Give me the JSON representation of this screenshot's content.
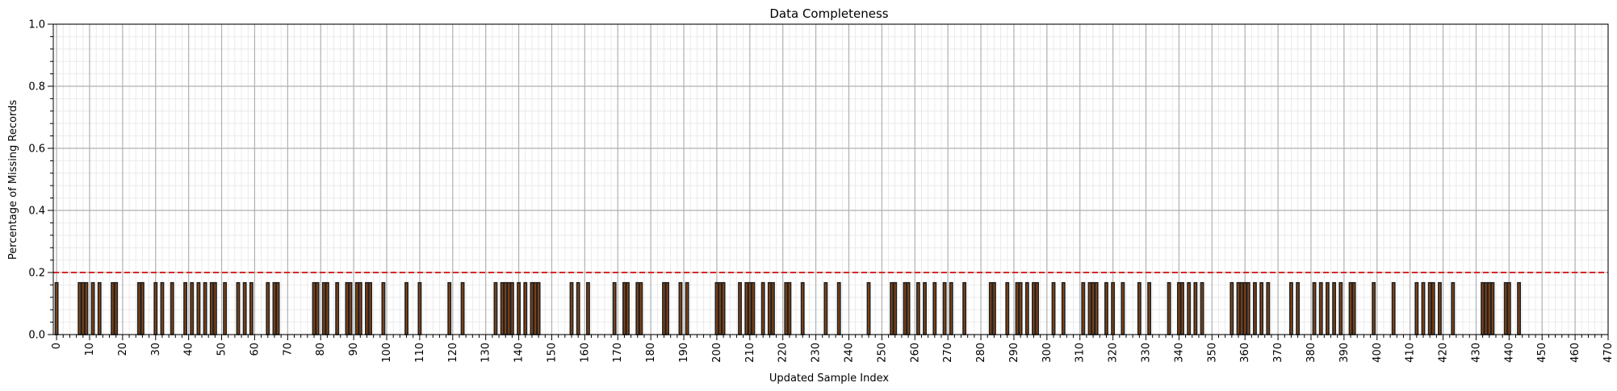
{
  "chart_data": {
    "type": "bar",
    "title": "Data Completeness",
    "xlabel": "Updated Sample Index",
    "ylabel": "Percentage of Missing Records",
    "xlim": [
      -1,
      470
    ],
    "ylim": [
      0,
      1.0
    ],
    "x_major_step": 10,
    "x_minor_step": 2,
    "y_ticks": [
      "0.0",
      "0.2",
      "0.4",
      "0.6",
      "0.8",
      "1.0"
    ],
    "y_minor_step": 0.04,
    "x_tick_rotation": "vertical",
    "grid": true,
    "threshold": 0.2,
    "threshold_color": "#d62728",
    "bar_fill_color": "#8b4513",
    "bar_edge_color": "#222222",
    "bar_value": 0.167,
    "x": [
      0,
      7,
      8,
      9,
      11,
      13,
      17,
      18,
      25,
      26,
      30,
      32,
      35,
      39,
      41,
      43,
      45,
      47,
      48,
      51,
      55,
      57,
      59,
      64,
      66,
      67,
      78,
      79,
      81,
      82,
      85,
      88,
      89,
      91,
      92,
      94,
      95,
      99,
      106,
      110,
      119,
      123,
      133,
      135,
      136,
      137,
      138,
      140,
      142,
      144,
      145,
      146,
      156,
      158,
      161,
      169,
      172,
      173,
      176,
      177,
      184,
      185,
      189,
      191,
      200,
      201,
      202,
      207,
      209,
      210,
      211,
      214,
      216,
      217,
      221,
      222,
      226,
      233,
      237,
      246,
      253,
      254,
      257,
      258,
      261,
      263,
      266,
      269,
      271,
      275,
      283,
      284,
      288,
      291,
      292,
      294,
      296,
      297,
      302,
      305,
      311,
      313,
      314,
      315,
      318,
      320,
      323,
      328,
      331,
      337,
      340,
      341,
      343,
      345,
      347,
      356,
      358,
      359,
      360,
      361,
      363,
      365,
      367,
      374,
      376,
      381,
      383,
      385,
      387,
      389,
      392,
      393,
      399,
      405,
      412,
      414,
      416,
      417,
      419,
      423,
      432,
      433,
      434,
      435,
      439,
      440,
      443
    ],
    "values": [
      0.167,
      0.167,
      0.167,
      0.167,
      0.167,
      0.167,
      0.167,
      0.167,
      0.167,
      0.167,
      0.167,
      0.167,
      0.167,
      0.167,
      0.167,
      0.167,
      0.167,
      0.167,
      0.167,
      0.167,
      0.167,
      0.167,
      0.167,
      0.167,
      0.167,
      0.167,
      0.167,
      0.167,
      0.167,
      0.167,
      0.167,
      0.167,
      0.167,
      0.167,
      0.167,
      0.167,
      0.167,
      0.167,
      0.167,
      0.167,
      0.167,
      0.167,
      0.167,
      0.167,
      0.167,
      0.167,
      0.167,
      0.167,
      0.167,
      0.167,
      0.167,
      0.167,
      0.167,
      0.167,
      0.167,
      0.167,
      0.167,
      0.167,
      0.167,
      0.167,
      0.167,
      0.167,
      0.167,
      0.167,
      0.167,
      0.167,
      0.167,
      0.167,
      0.167,
      0.167,
      0.167,
      0.167,
      0.167,
      0.167,
      0.167,
      0.167,
      0.167,
      0.167,
      0.167,
      0.167,
      0.167,
      0.167,
      0.167,
      0.167,
      0.167,
      0.167,
      0.167,
      0.167,
      0.167,
      0.167,
      0.167,
      0.167,
      0.167,
      0.167,
      0.167,
      0.167,
      0.167,
      0.167,
      0.167,
      0.167,
      0.167,
      0.167,
      0.167,
      0.167,
      0.167,
      0.167,
      0.167,
      0.167,
      0.167,
      0.167,
      0.167,
      0.167,
      0.167,
      0.167,
      0.167,
      0.167,
      0.167,
      0.167,
      0.167,
      0.167,
      0.167,
      0.167,
      0.167,
      0.167,
      0.167,
      0.167,
      0.167,
      0.167,
      0.167,
      0.167,
      0.167,
      0.167,
      0.167,
      0.167,
      0.167,
      0.167,
      0.167,
      0.167,
      0.167,
      0.167,
      0.167,
      0.167,
      0.167,
      0.167,
      0.167,
      0.167,
      0.167
    ]
  }
}
